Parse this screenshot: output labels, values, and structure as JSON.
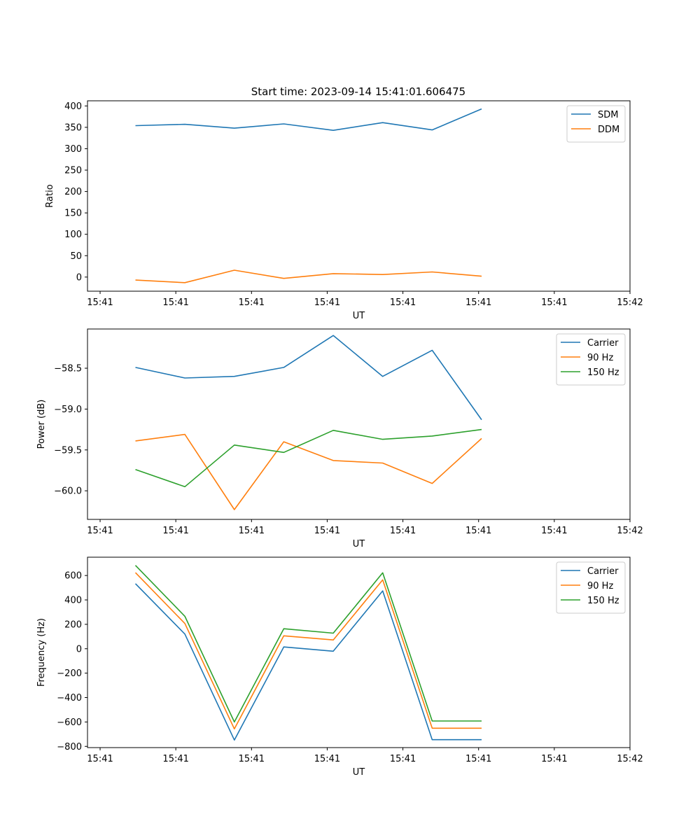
{
  "title": "Start time: 2023-09-14 15:41:01.606475",
  "colors": {
    "C0": "#1f77b4",
    "C1": "#ff7f0e",
    "C2": "#2ca02c"
  },
  "chart_data": [
    {
      "type": "line",
      "ylabel": "Ratio",
      "xlabel": "UT",
      "x_tick_labels": [
        "15:41",
        "15:41",
        "15:41",
        "15:41",
        "15:41",
        "15:41",
        "15:41",
        "15:42"
      ],
      "x_tick_values": [
        0,
        1.5,
        3,
        4.5,
        6,
        7.5,
        9,
        10.5
      ],
      "xlim": [
        -0.25,
        10.5
      ],
      "ylim": [
        -33,
        412
      ],
      "y_ticks": [
        0,
        50,
        100,
        150,
        200,
        250,
        300,
        350,
        400
      ],
      "y_tick_labels": [
        "0",
        "50",
        "100",
        "150",
        "200",
        "250",
        "300",
        "350",
        "400"
      ],
      "legend_position": "top-right",
      "x": [
        0.7,
        1.68,
        2.66,
        3.64,
        4.62,
        5.6,
        6.58,
        7.56
      ],
      "series": [
        {
          "name": "SDM",
          "color": "#1f77b4",
          "values": [
            354,
            357,
            348,
            358,
            343,
            361,
            344,
            393
          ]
        },
        {
          "name": "DDM",
          "color": "#ff7f0e",
          "values": [
            -7,
            -13,
            16,
            -3,
            8,
            6,
            12,
            2
          ]
        }
      ]
    },
    {
      "type": "line",
      "ylabel": "Power (dB)",
      "xlabel": "UT",
      "x_tick_labels": [
        "15:41",
        "15:41",
        "15:41",
        "15:41",
        "15:41",
        "15:41",
        "15:41",
        "15:42"
      ],
      "x_tick_values": [
        0,
        1.5,
        3,
        4.5,
        6,
        7.5,
        9,
        10.5
      ],
      "xlim": [
        -0.25,
        10.5
      ],
      "ylim": [
        -60.35,
        -58.02
      ],
      "y_ticks": [
        -60.0,
        -59.5,
        -59.0,
        -58.5
      ],
      "y_tick_labels": [
        "−60.0",
        "−59.5",
        "−59.0",
        "−58.5"
      ],
      "legend_position": "top-right",
      "x": [
        0.7,
        1.68,
        2.66,
        3.64,
        4.62,
        5.6,
        6.58,
        7.56
      ],
      "series": [
        {
          "name": "Carrier",
          "color": "#1f77b4",
          "values": [
            -58.49,
            -58.62,
            -58.6,
            -58.49,
            -58.1,
            -58.6,
            -58.28,
            -59.13
          ]
        },
        {
          "name": "90 Hz",
          "color": "#ff7f0e",
          "values": [
            -59.39,
            -59.31,
            -60.23,
            -59.4,
            -59.63,
            -59.66,
            -59.91,
            -59.36
          ]
        },
        {
          "name": "150 Hz",
          "color": "#2ca02c",
          "values": [
            -59.74,
            -59.95,
            -59.44,
            -59.53,
            -59.26,
            -59.37,
            -59.33,
            -59.25
          ]
        }
      ]
    },
    {
      "type": "line",
      "ylabel": "Frequency (Hz)",
      "xlabel": "UT",
      "x_tick_labels": [
        "15:41",
        "15:41",
        "15:41",
        "15:41",
        "15:41",
        "15:41",
        "15:41",
        "15:42"
      ],
      "x_tick_values": [
        0,
        1.5,
        3,
        4.5,
        6,
        7.5,
        9,
        10.5
      ],
      "xlim": [
        -0.25,
        10.5
      ],
      "ylim": [
        -810,
        750
      ],
      "y_ticks": [
        -800,
        -600,
        -400,
        -200,
        0,
        200,
        400,
        600
      ],
      "y_tick_labels": [
        "−800",
        "−600",
        "−400",
        "−200",
        "0",
        "200",
        "400",
        "600"
      ],
      "legend_position": "top-right",
      "x": [
        0.7,
        1.68,
        2.66,
        3.64,
        4.62,
        5.6,
        6.58,
        7.56
      ],
      "series": [
        {
          "name": "Carrier",
          "color": "#1f77b4",
          "values": [
            533,
            120,
            -748,
            15,
            -20,
            474,
            -745,
            -745
          ]
        },
        {
          "name": "90 Hz",
          "color": "#ff7f0e",
          "values": [
            623,
            207,
            -657,
            106,
            72,
            564,
            -651,
            -651
          ]
        },
        {
          "name": "150 Hz",
          "color": "#2ca02c",
          "values": [
            683,
            266,
            -600,
            164,
            128,
            622,
            -592,
            -592
          ]
        }
      ]
    }
  ]
}
